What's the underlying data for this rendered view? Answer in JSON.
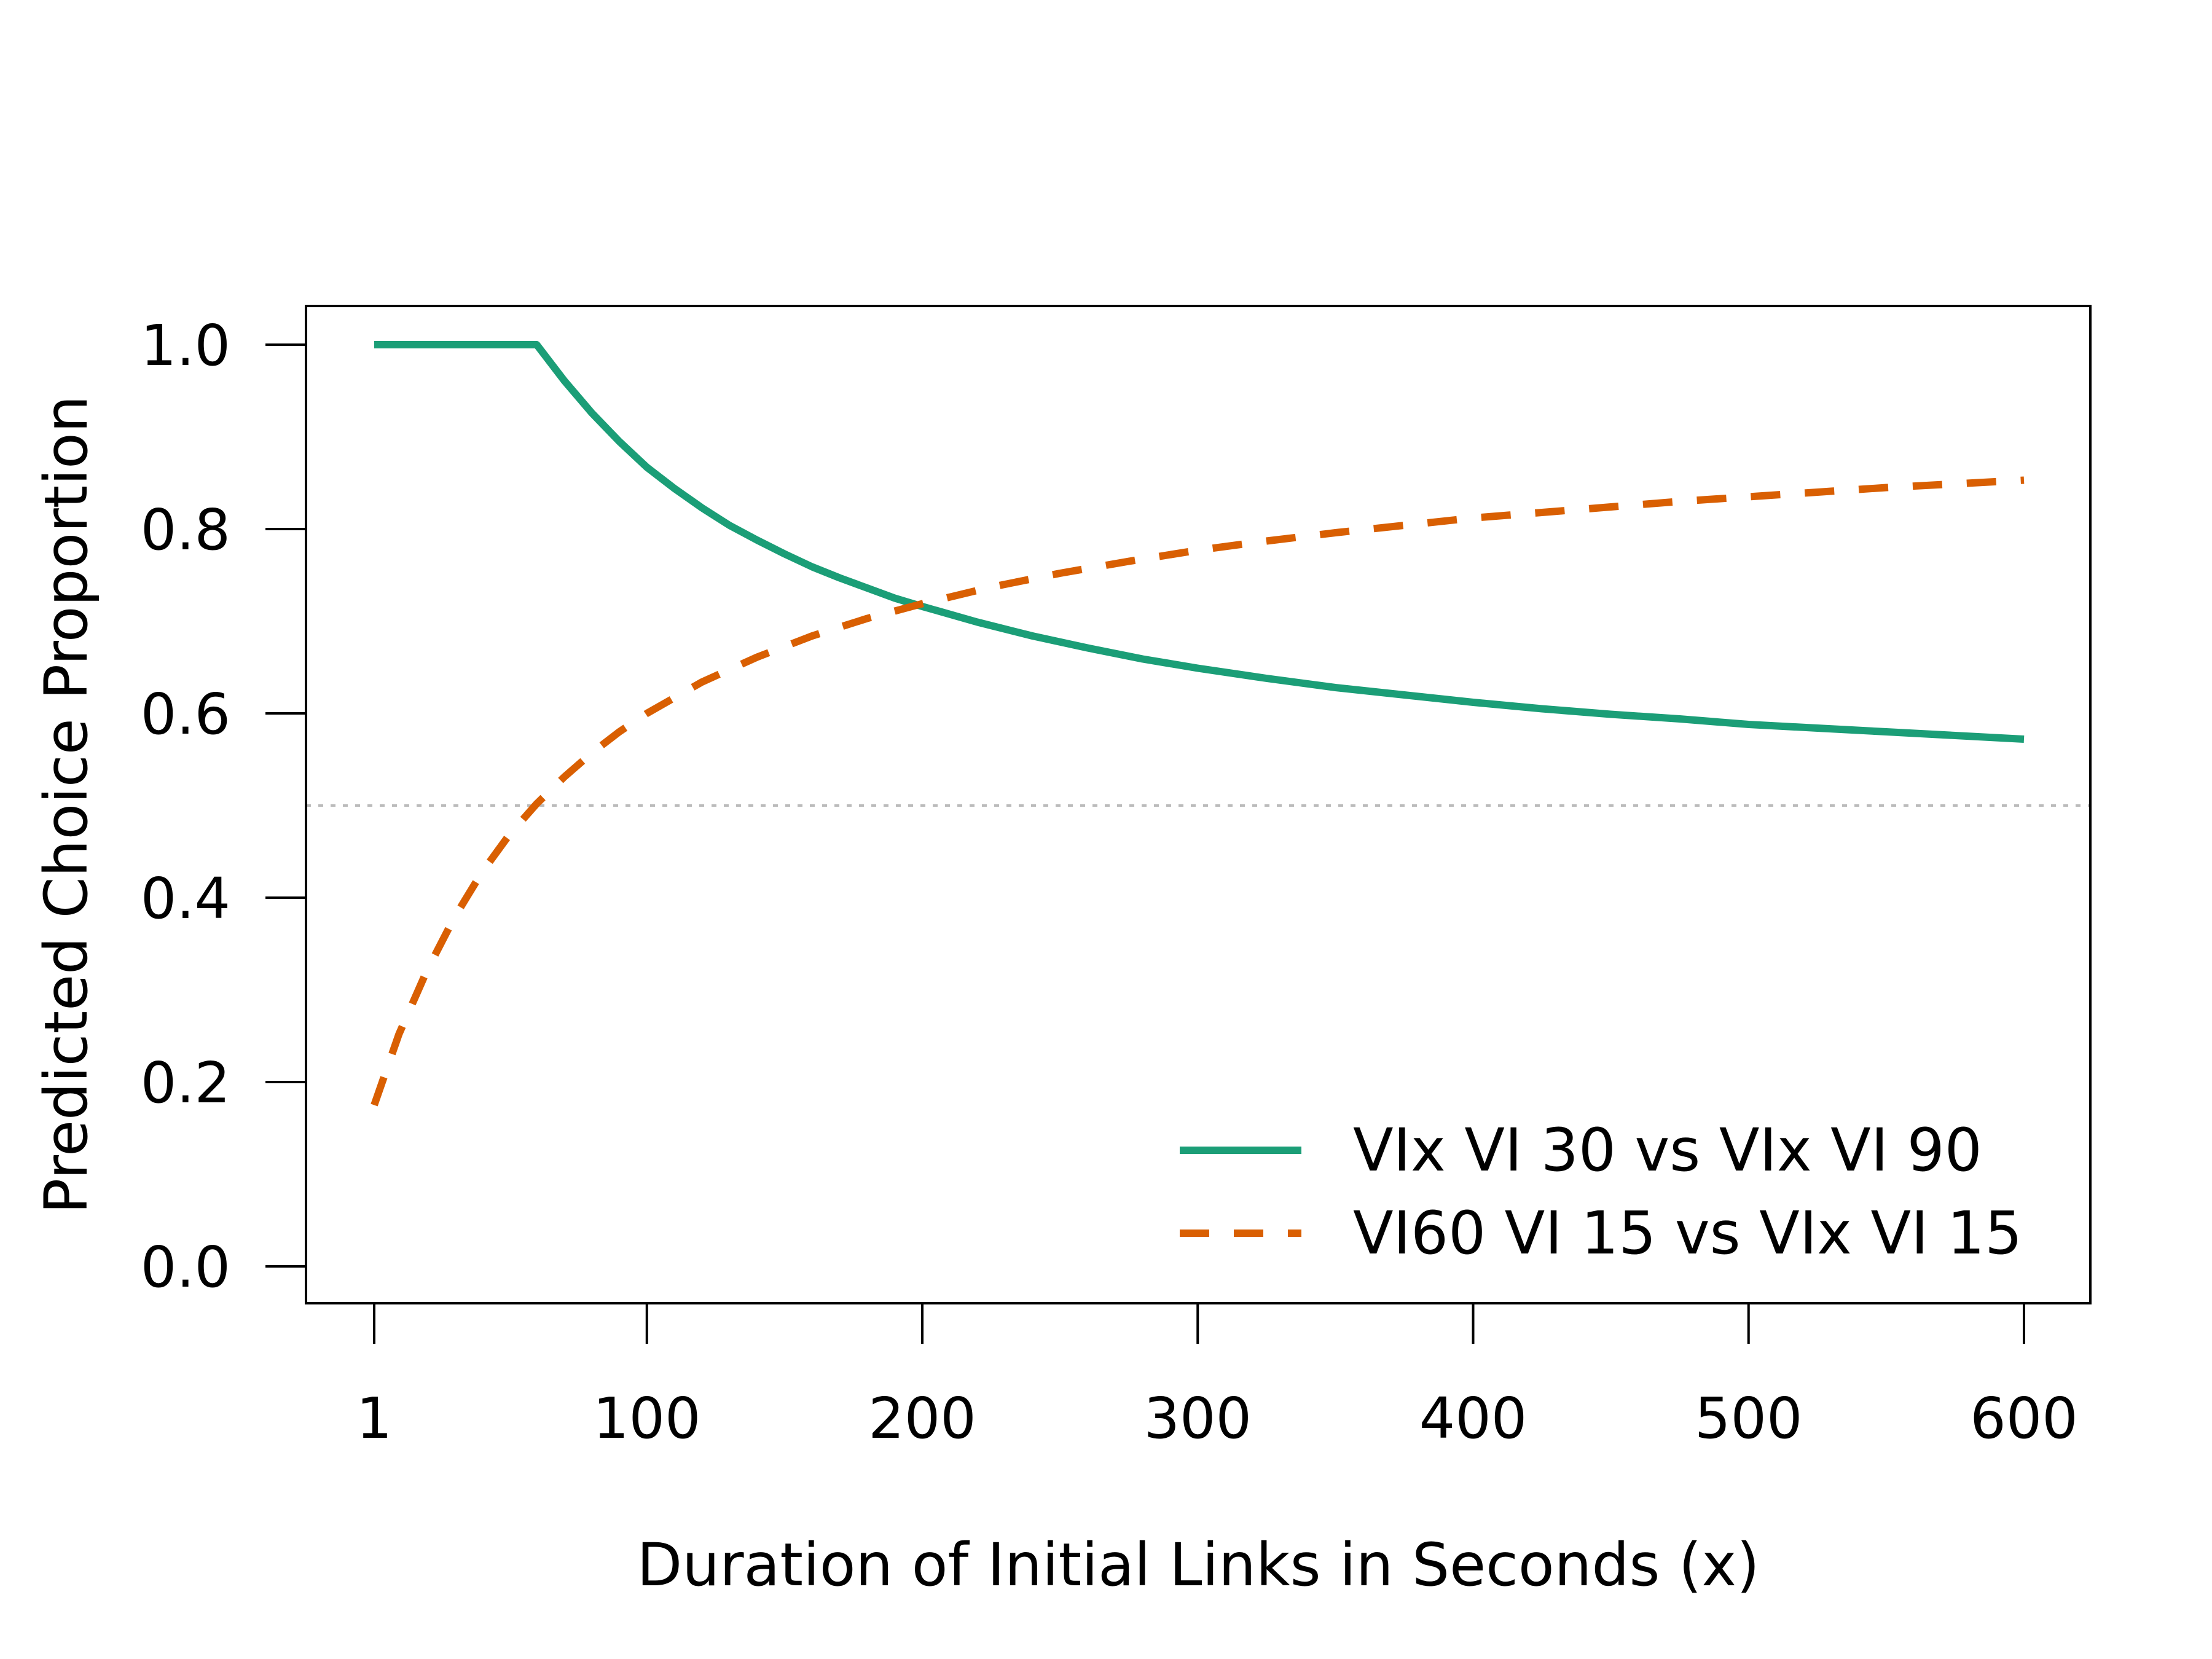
{
  "chart_data": {
    "type": "line",
    "title": "",
    "xlabel": "Duration of Initial Links in Seconds (x)",
    "ylabel": "Predicted Choice Proportion",
    "xlim": [
      1,
      600
    ],
    "ylim": [
      0,
      1
    ],
    "x_ticks": [
      1,
      100,
      200,
      300,
      400,
      500,
      600
    ],
    "x_tick_labels": [
      "1",
      "100",
      "200",
      "300",
      "400",
      "500",
      "600"
    ],
    "y_ticks": [
      0,
      0.2,
      0.4,
      0.6,
      0.8,
      1.0
    ],
    "y_tick_labels": [
      "0.0",
      "0.2",
      "0.4",
      "0.6",
      "0.8",
      "1.0"
    ],
    "reference_line": {
      "y": 0.5,
      "color": "#bbbbbb",
      "style": "dotted"
    },
    "grid": false,
    "legend_position": "bottom-right",
    "series": [
      {
        "name": "VIx VI 30 vs VIx VI 90",
        "color": "#1b9e77",
        "style": "solid",
        "x": [
          1,
          20,
          40,
          60,
          70,
          80,
          90,
          100,
          110,
          120,
          130,
          140,
          150,
          160,
          170,
          180,
          190,
          200,
          220,
          240,
          260,
          280,
          300,
          325,
          350,
          375,
          400,
          425,
          450,
          475,
          500,
          525,
          550,
          575,
          600
        ],
        "y": [
          1.0,
          1.0,
          1.0,
          1.0,
          0.961,
          0.926,
          0.895,
          0.867,
          0.844,
          0.823,
          0.804,
          0.788,
          0.773,
          0.759,
          0.747,
          0.736,
          0.725,
          0.716,
          0.699,
          0.684,
          0.671,
          0.659,
          0.649,
          0.638,
          0.628,
          0.62,
          0.612,
          0.605,
          0.599,
          0.594,
          0.588,
          0.584,
          0.58,
          0.576,
          0.572
        ]
      },
      {
        "name": "VI60 VI 15 vs VIx VI 15",
        "color": "#d95f02",
        "style": "dashed",
        "x": [
          1,
          10,
          20,
          30,
          40,
          50,
          60,
          70,
          80,
          90,
          100,
          120,
          140,
          160,
          180,
          200,
          225,
          250,
          275,
          300,
          325,
          350,
          375,
          400,
          425,
          450,
          475,
          500,
          525,
          550,
          575,
          600
        ],
        "y": [
          0.175,
          0.252,
          0.32,
          0.378,
          0.427,
          0.468,
          0.502,
          0.531,
          0.557,
          0.58,
          0.6,
          0.634,
          0.661,
          0.684,
          0.703,
          0.719,
          0.737,
          0.752,
          0.765,
          0.777,
          0.787,
          0.796,
          0.804,
          0.812,
          0.818,
          0.824,
          0.83,
          0.835,
          0.84,
          0.845,
          0.849,
          0.853
        ]
      }
    ]
  }
}
